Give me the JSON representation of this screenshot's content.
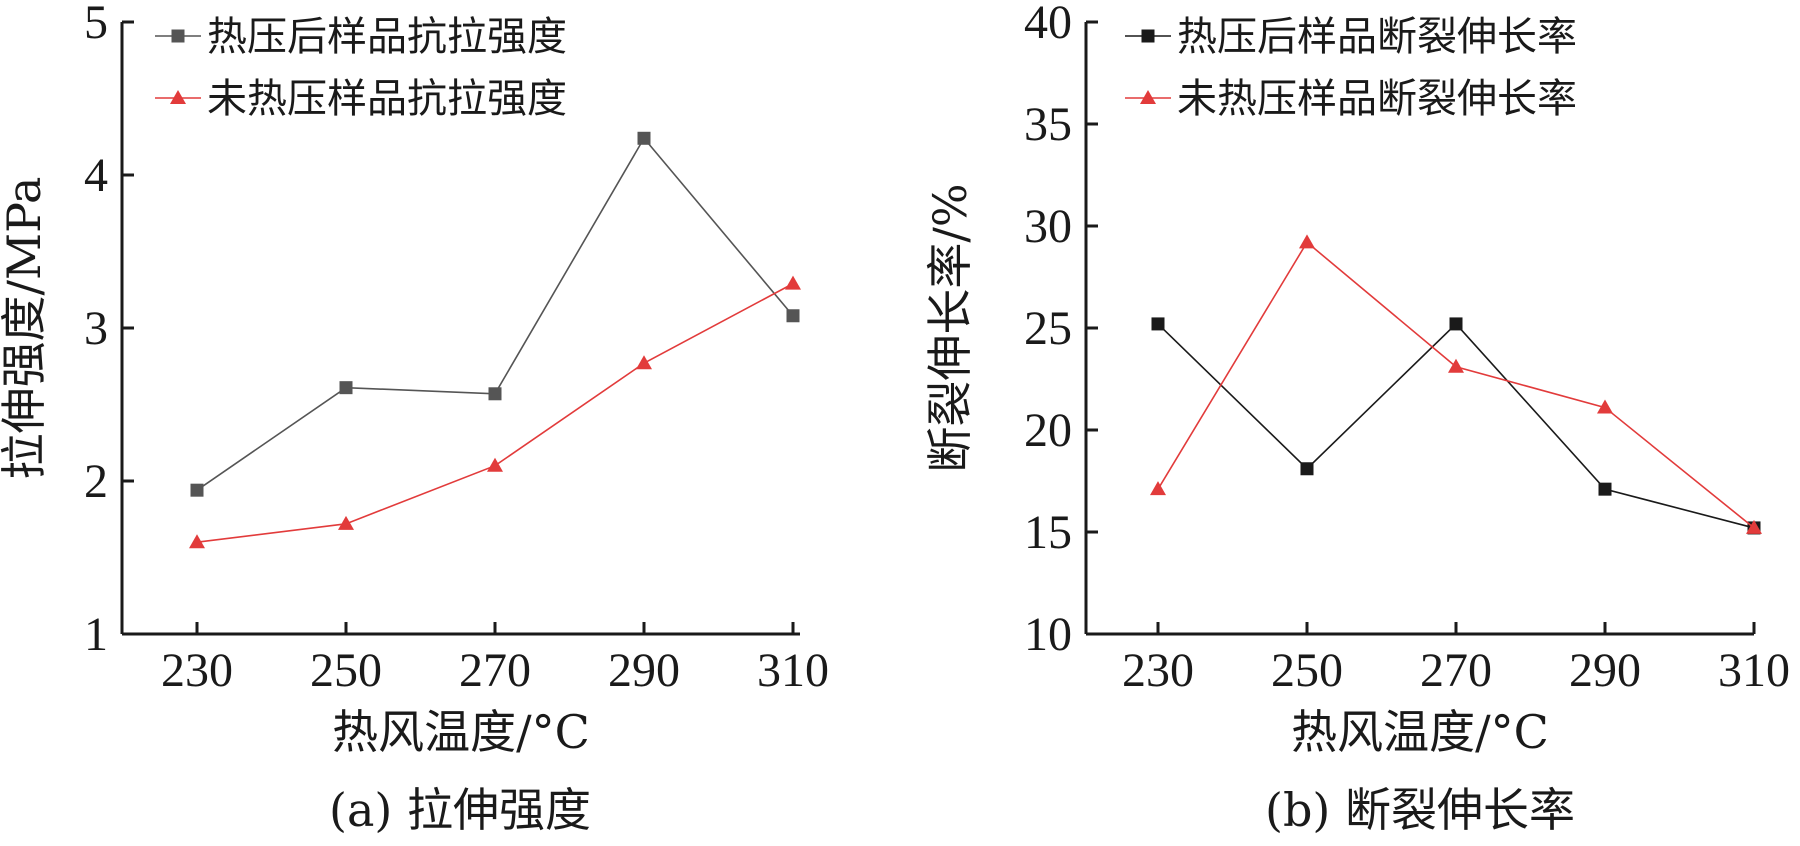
{
  "chart_data": [
    {
      "type": "line",
      "caption": "(a) 拉伸强度",
      "xlabel": "热风温度/°C",
      "ylabel": "拉伸强度/MPa",
      "categories": [
        "230",
        "250",
        "270",
        "290",
        "310"
      ],
      "ylim": [
        1,
        5
      ],
      "yticks": [
        1,
        2,
        3,
        4,
        5
      ],
      "legend_position": "top-left",
      "grid": false,
      "series": [
        {
          "name": "热压后样品抗拉强度",
          "marker": "square",
          "color": "#555555",
          "values": [
            1.94,
            2.61,
            2.57,
            4.24,
            3.08
          ]
        },
        {
          "name": "未热压样品抗拉强度",
          "marker": "triangle",
          "color": "#e23b3b",
          "values": [
            1.6,
            1.72,
            2.1,
            2.77,
            3.29
          ]
        }
      ]
    },
    {
      "type": "line",
      "caption": "(b) 断裂伸长率",
      "xlabel": "热风温度/°C",
      "ylabel": "断裂伸长率/%",
      "categories": [
        "230",
        "250",
        "270",
        "290",
        "310"
      ],
      "ylim": [
        10,
        40
      ],
      "yticks": [
        10,
        15,
        20,
        25,
        30,
        35,
        40
      ],
      "legend_position": "top-left",
      "grid": false,
      "series": [
        {
          "name": "热压后样品断裂伸长率",
          "marker": "square",
          "color": "#1a1a1a",
          "values": [
            25.2,
            18.1,
            25.2,
            17.1,
            15.2
          ]
        },
        {
          "name": "未热压样品断裂伸长率",
          "marker": "triangle",
          "color": "#e23b3b",
          "values": [
            17.1,
            29.2,
            23.1,
            21.1,
            15.2
          ]
        }
      ]
    }
  ]
}
